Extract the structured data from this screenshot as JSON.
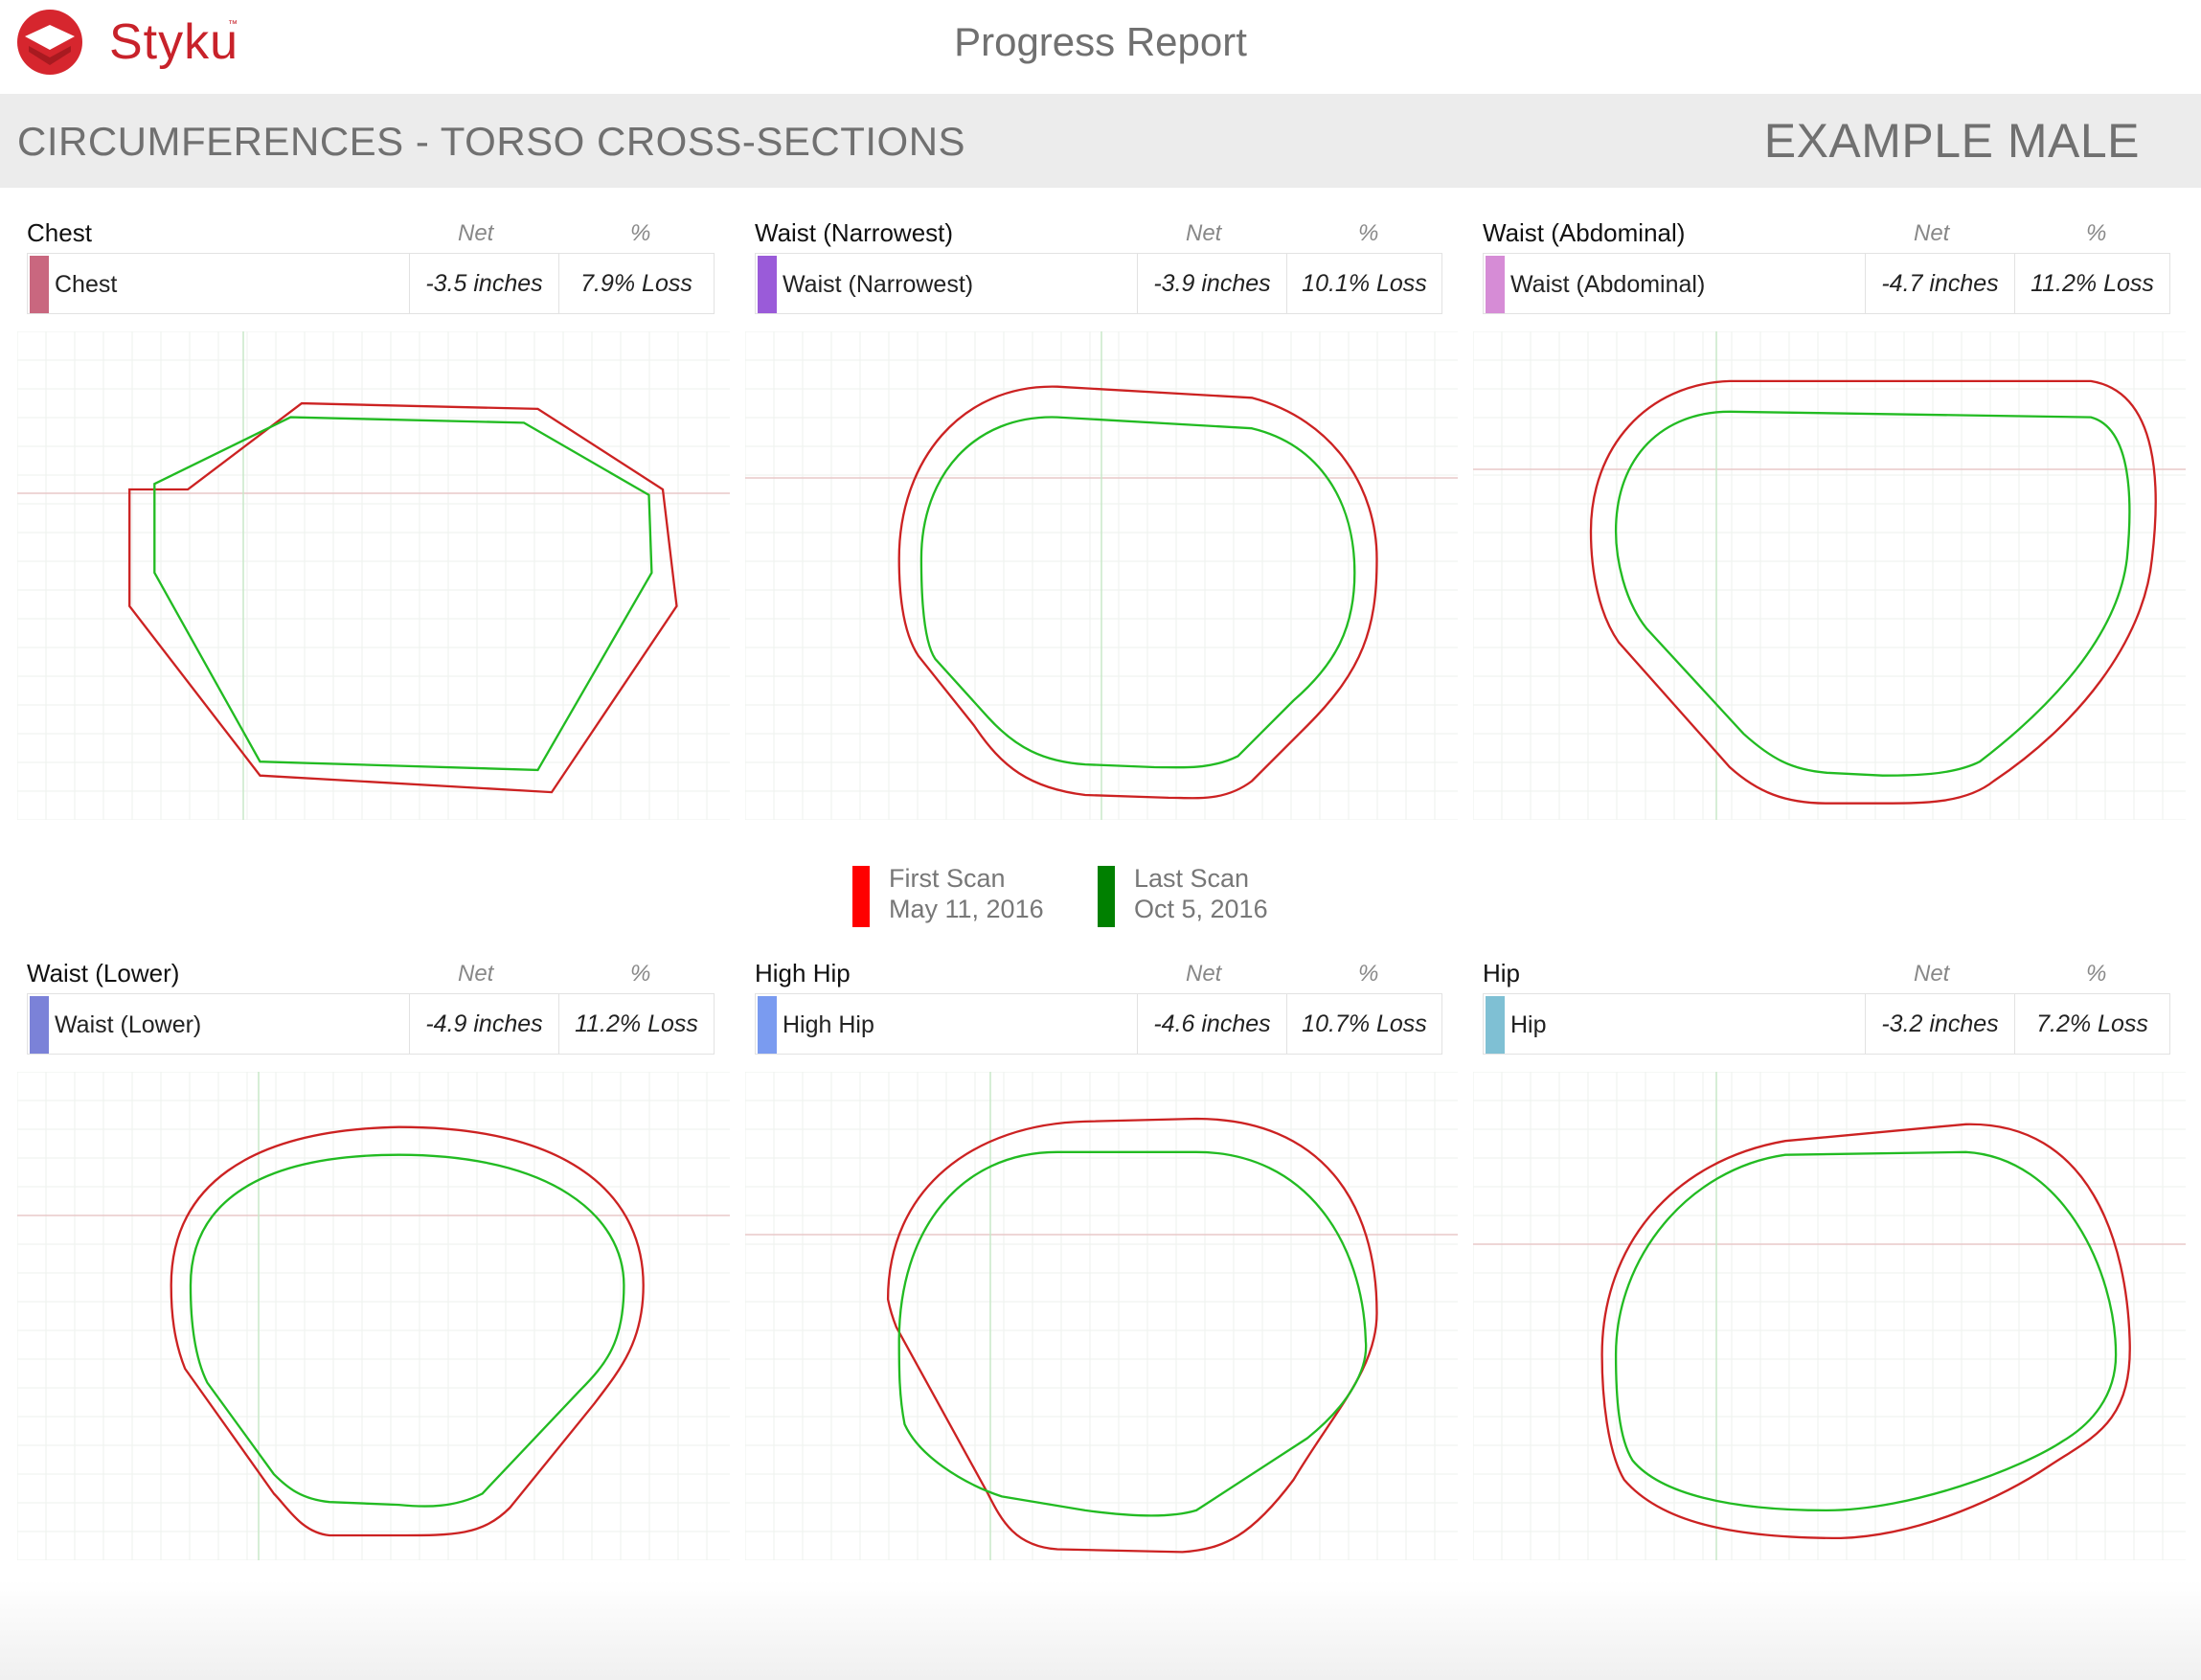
{
  "header": {
    "brand": "Styku",
    "brand_tm": "™",
    "title": "Progress Report"
  },
  "band": {
    "title": "CIRCUMFERENCES - TORSO CROSS-SECTIONS",
    "name": "EXAMPLE MALE"
  },
  "colors": {
    "first_scan": "#cc2222",
    "last_scan": "#22bb22",
    "legend_first": "#ff0000",
    "legend_last": "#008000"
  },
  "legend": {
    "first": {
      "label": "First Scan",
      "date": "May 11, 2016"
    },
    "last": {
      "label": "Last Scan",
      "date": "Oct 5, 2016"
    }
  },
  "panels": [
    {
      "title": "Chest",
      "col_net": "Net",
      "col_pct": "%",
      "name": "Chest",
      "net": "-3.5 inches",
      "pct": "7.9% Loss",
      "swatch": "#c9677f"
    },
    {
      "title": "Waist (Narrowest)",
      "col_net": "Net",
      "col_pct": "%",
      "name": "Waist (Narrowest)",
      "net": "-3.9 inches",
      "pct": "10.1% Loss",
      "swatch": "#9a5bd9"
    },
    {
      "title": "Waist (Abdominal)",
      "col_net": "Net",
      "col_pct": "%",
      "name": "Waist (Abdominal)",
      "net": "-4.7 inches",
      "pct": "11.2% Loss",
      "swatch": "#d68cd6"
    },
    {
      "title": "Waist (Lower)",
      "col_net": "Net",
      "col_pct": "%",
      "name": "Waist (Lower)",
      "net": "-4.9 inches",
      "pct": "11.2% Loss",
      "swatch": "#7b82d8"
    },
    {
      "title": "High Hip",
      "col_net": "Net",
      "col_pct": "%",
      "name": "High Hip",
      "net": "-4.6 inches",
      "pct": "10.7% Loss",
      "swatch": "#7a9bf0"
    },
    {
      "title": "Hip",
      "col_net": "Net",
      "col_pct": "%",
      "name": "Hip",
      "net": "-3.2 inches",
      "pct": "7.2% Loss",
      "swatch": "#7fc0d4"
    }
  ]
}
